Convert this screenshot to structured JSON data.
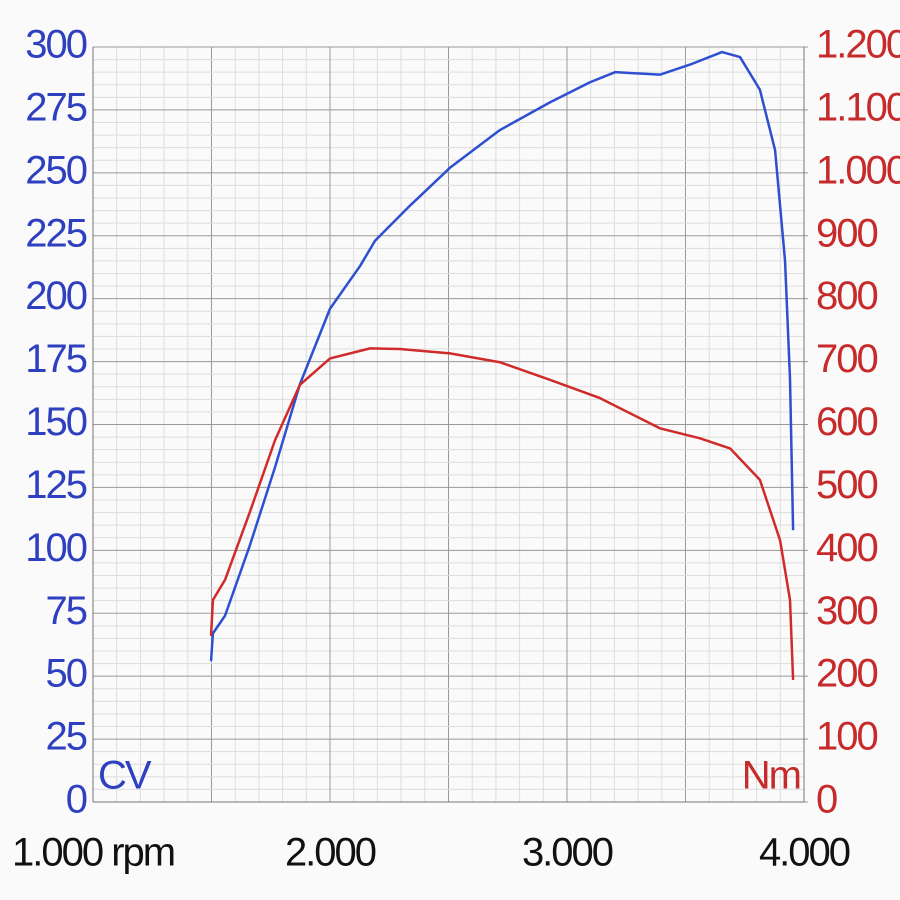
{
  "chart_data": {
    "type": "line",
    "y_label": "CV",
    "y2_label": "Nm",
    "xlim": [
      1000,
      4000
    ],
    "xticks": [
      {
        "value": 1000,
        "label": "1.000 rpm"
      },
      {
        "value": 2000,
        "label": "2.000"
      },
      {
        "value": 3000,
        "label": "3.000"
      },
      {
        "value": 4000,
        "label": "4.000"
      }
    ],
    "ylim": [
      0,
      300
    ],
    "yticks": [
      0,
      25,
      50,
      75,
      100,
      125,
      150,
      175,
      200,
      225,
      250,
      275,
      300
    ],
    "y2lim": [
      0,
      1200
    ],
    "y2ticks": [
      0,
      100,
      200,
      300,
      400,
      500,
      600,
      700,
      800,
      900,
      {
        "value": 1000,
        "label": "1.000"
      },
      {
        "value": 1100,
        "label": "1.100"
      },
      {
        "value": 1200,
        "label": "1.200"
      }
    ],
    "grid": true,
    "y_color": "#2e3fbf",
    "y2_color": "#c62a2a",
    "series": [
      {
        "color": "#2e4fd0",
        "x": [
          1498,
          1506,
          1557,
          1662,
          1768,
          1873,
          2000,
          2127,
          2190,
          2338,
          2506,
          2717,
          2928,
          3097,
          3203,
          3392,
          3519,
          3654,
          3730,
          3814,
          3878,
          3920,
          3941,
          3954
        ],
        "values": [
          56,
          67,
          74,
          102,
          133,
          166,
          196,
          213,
          223,
          237,
          252,
          267,
          278,
          286,
          290,
          289,
          293,
          298,
          296,
          283,
          259,
          215,
          168,
          108
        ]
      },
      {
        "color": "#d02a2a",
        "axis": "y2",
        "x": [
          1498,
          1506,
          1557,
          1662,
          1768,
          1873,
          2000,
          2169,
          2295,
          2506,
          2717,
          2928,
          3139,
          3392,
          3561,
          3688,
          3814,
          3899,
          3941,
          3954
        ],
        "values": [
          264,
          321,
          353,
          461,
          575,
          663,
          705,
          721,
          720,
          713,
          699,
          671,
          642,
          594,
          578,
          562,
          512,
          416,
          321,
          194
        ]
      }
    ]
  }
}
